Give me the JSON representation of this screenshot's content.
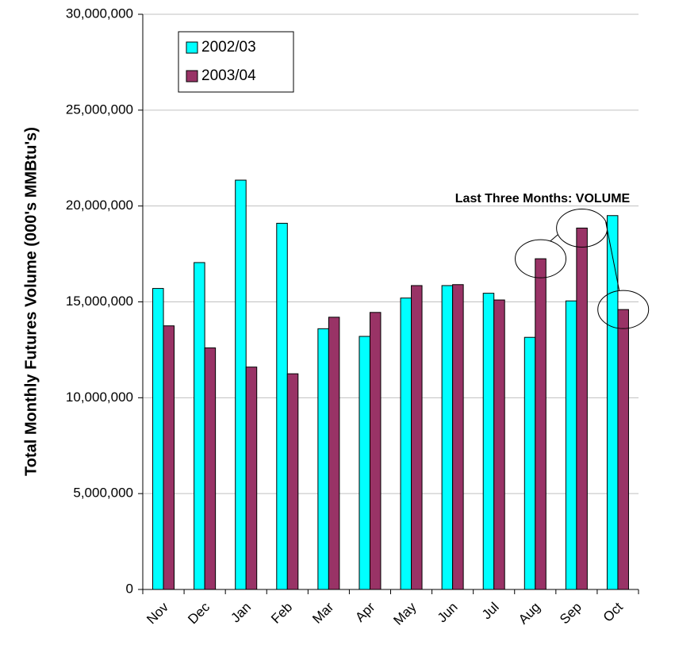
{
  "chart_data": {
    "type": "bar",
    "y_label": "Total Monthly Futures Volume (000's MMBtu's)",
    "annotation": "Last Three Months: VOLUME",
    "categories": [
      "Nov",
      "Dec",
      "Jan",
      "Feb",
      "Mar",
      "Apr",
      "May",
      "Jun",
      "Jul",
      "Aug",
      "Sep",
      "Oct"
    ],
    "series": [
      {
        "name": "2002/03",
        "color": "#00ffff",
        "values": [
          15700000,
          17050000,
          21350000,
          19100000,
          13600000,
          13200000,
          15200000,
          15850000,
          15450000,
          13150000,
          15050000,
          19500000
        ]
      },
      {
        "name": "2003/04",
        "color": "#993366",
        "values": [
          13750000,
          12600000,
          11600000,
          11250000,
          14200000,
          14450000,
          15850000,
          15900000,
          15100000,
          17250000,
          18850000,
          14600000
        ]
      }
    ],
    "ylim": [
      0,
      30000000
    ],
    "yticks": [
      0,
      {
        "value": 5000000,
        "label": "5,000,000"
      },
      {
        "value": 10000000,
        "label": "10,000,000"
      },
      {
        "value": 15000000,
        "label": "15,000,000"
      },
      {
        "value": 20000000,
        "label": "20,000,000"
      },
      {
        "value": 25000000,
        "label": "25,000,000"
      },
      {
        "value": 30000000,
        "label": "30,000,000"
      }
    ],
    "grid": true,
    "legend": "top-left"
  }
}
